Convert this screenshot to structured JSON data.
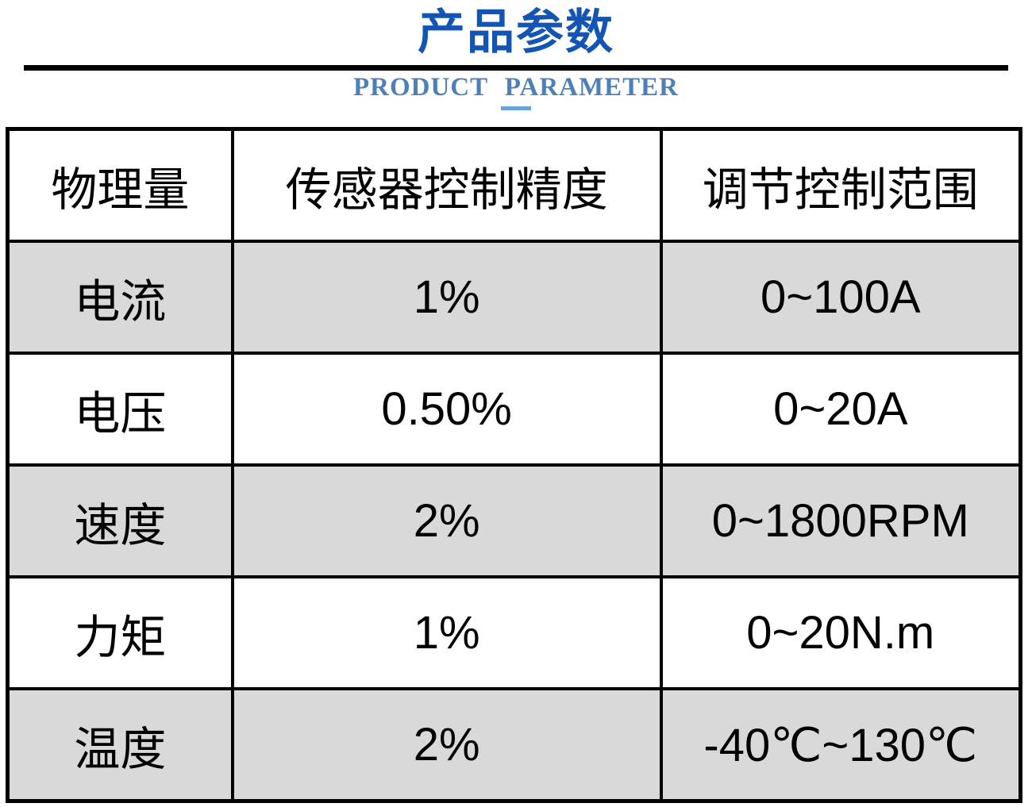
{
  "header": {
    "title_cn": "产品参数",
    "title_en": "PRODUCT PARAMETER"
  },
  "colors": {
    "title_blue": "#1355b4",
    "subtitle_blue": "#4d7fbb",
    "dash_blue": "#6ba3d9",
    "row_alt_gray": "#d9d9d9",
    "border_black": "#000000"
  },
  "table": {
    "headers": {
      "quantity": "物理量",
      "accuracy": "传感器控制精度",
      "range": "调节控制范围"
    },
    "rows": [
      {
        "quantity": "电流",
        "accuracy": "1%",
        "range": "0~100A"
      },
      {
        "quantity": "电压",
        "accuracy": "0.50%",
        "range": "0~20A"
      },
      {
        "quantity": "速度",
        "accuracy": "2%",
        "range": "0~1800RPM"
      },
      {
        "quantity": "力矩",
        "accuracy": "1%",
        "range": "0~20N.m"
      },
      {
        "quantity": "温度",
        "accuracy": "2%",
        "range": "-40℃~130℃"
      }
    ]
  }
}
